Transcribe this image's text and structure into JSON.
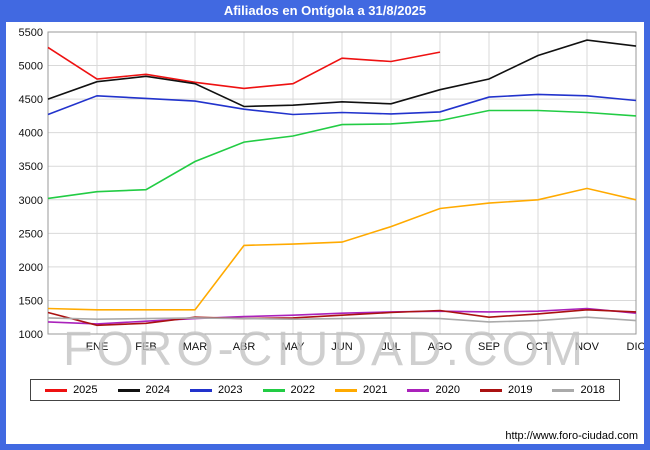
{
  "page": {
    "bg_color": "#4169e1",
    "watermark": "FORO-CIUDAD.COM",
    "footer_url": "http://www.foro-ciudad.com"
  },
  "chart_data": {
    "type": "line",
    "title": "Afiliados en Ontígola a 31/8/2025",
    "xlabel": "",
    "ylabel": "",
    "ylim": [
      1000,
      5500
    ],
    "ytick": 500,
    "grid": true,
    "legend_position": "bottom",
    "categories": [
      "ENE",
      "FEB",
      "MAR",
      "ABR",
      "MAY",
      "JUN",
      "JUL",
      "AGO",
      "SEP",
      "OCT",
      "NOV",
      "DIC"
    ],
    "note": "values[0] is the point on the left axis before ENE; values[1..12] align with the month ticks",
    "series": [
      {
        "name": "2025",
        "color": "#ee1111",
        "values": [
          5270,
          4800,
          4870,
          4750,
          4660,
          4730,
          5110,
          5060,
          5200,
          null,
          null,
          null,
          null
        ]
      },
      {
        "name": "2024",
        "color": "#111111",
        "values": [
          4500,
          4760,
          4840,
          4730,
          4390,
          4410,
          4460,
          4430,
          4640,
          4800,
          5150,
          5380,
          5290
        ]
      },
      {
        "name": "2023",
        "color": "#2233cc",
        "values": [
          4270,
          4550,
          4510,
          4470,
          4350,
          4270,
          4300,
          4280,
          4310,
          4530,
          4570,
          4550,
          4480
        ]
      },
      {
        "name": "2022",
        "color": "#22cc44",
        "values": [
          3020,
          3120,
          3150,
          3570,
          3860,
          3950,
          4120,
          4130,
          4180,
          4330,
          4330,
          4300,
          4250
        ]
      },
      {
        "name": "2021",
        "color": "#ffaa00",
        "values": [
          1380,
          1360,
          1360,
          1360,
          2320,
          2340,
          2370,
          2600,
          2870,
          2950,
          3000,
          3170,
          3000
        ]
      },
      {
        "name": "2020",
        "color": "#aa22bb",
        "values": [
          1180,
          1150,
          1190,
          1230,
          1260,
          1280,
          1310,
          1330,
          1340,
          1330,
          1340,
          1380,
          1310
        ]
      },
      {
        "name": "2019",
        "color": "#aa1111",
        "values": [
          1320,
          1130,
          1160,
          1250,
          1230,
          1240,
          1280,
          1320,
          1350,
          1250,
          1300,
          1360,
          1330
        ]
      },
      {
        "name": "2018",
        "color": "#aaaaaa",
        "values": [
          1240,
          1220,
          1230,
          1240,
          1230,
          1220,
          1230,
          1240,
          1230,
          1180,
          1200,
          1250,
          1200
        ]
      }
    ]
  }
}
